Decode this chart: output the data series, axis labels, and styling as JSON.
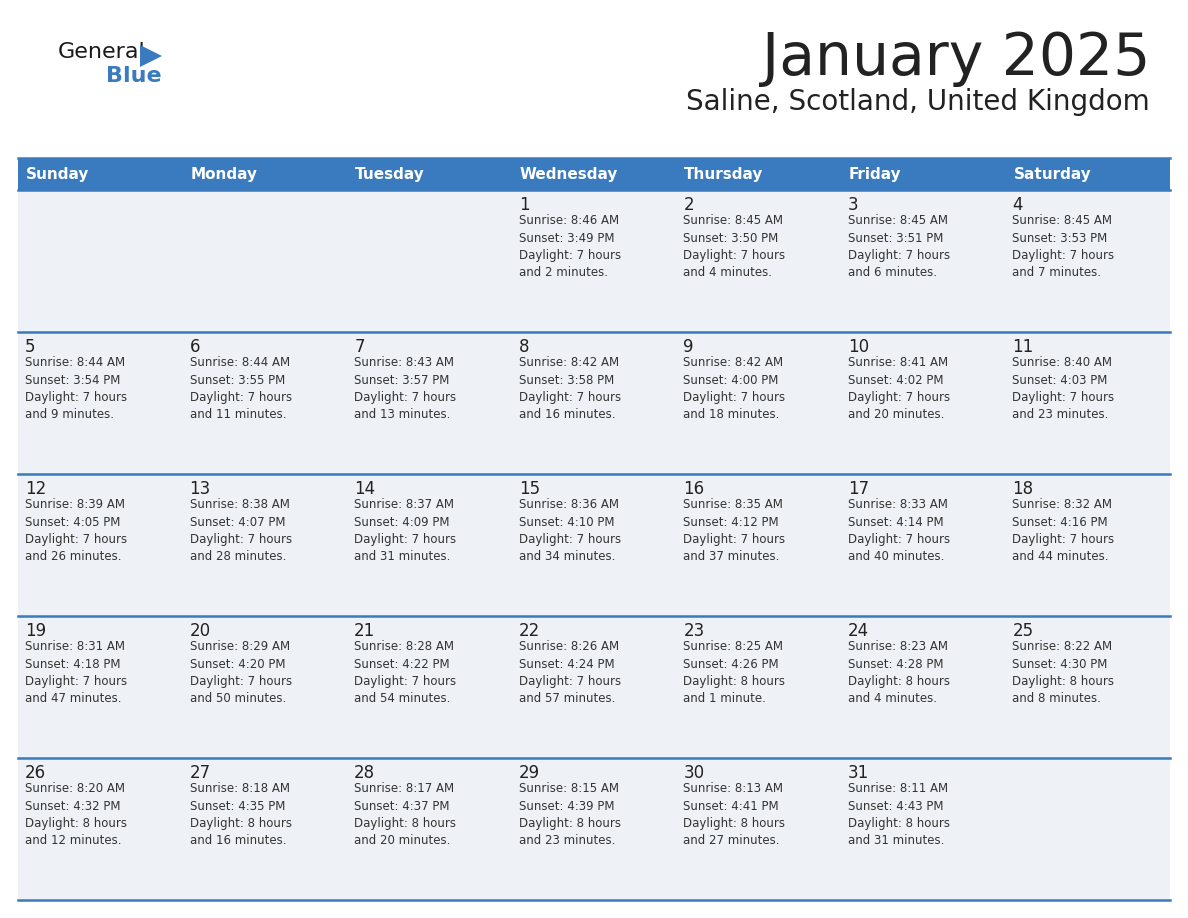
{
  "title": "January 2025",
  "subtitle": "Saline, Scotland, United Kingdom",
  "header_color": "#3a7abf",
  "header_text_color": "#ffffff",
  "cell_bg_light": "#eef2f7",
  "cell_bg_white": "#ffffff",
  "border_color": "#3a7abf",
  "text_color": "#222222",
  "info_color": "#333333",
  "days_of_week": [
    "Sunday",
    "Monday",
    "Tuesday",
    "Wednesday",
    "Thursday",
    "Friday",
    "Saturday"
  ],
  "calendar_data": [
    [
      {
        "day": "",
        "info": ""
      },
      {
        "day": "",
        "info": ""
      },
      {
        "day": "",
        "info": ""
      },
      {
        "day": "1",
        "info": "Sunrise: 8:46 AM\nSunset: 3:49 PM\nDaylight: 7 hours\nand 2 minutes."
      },
      {
        "day": "2",
        "info": "Sunrise: 8:45 AM\nSunset: 3:50 PM\nDaylight: 7 hours\nand 4 minutes."
      },
      {
        "day": "3",
        "info": "Sunrise: 8:45 AM\nSunset: 3:51 PM\nDaylight: 7 hours\nand 6 minutes."
      },
      {
        "day": "4",
        "info": "Sunrise: 8:45 AM\nSunset: 3:53 PM\nDaylight: 7 hours\nand 7 minutes."
      }
    ],
    [
      {
        "day": "5",
        "info": "Sunrise: 8:44 AM\nSunset: 3:54 PM\nDaylight: 7 hours\nand 9 minutes."
      },
      {
        "day": "6",
        "info": "Sunrise: 8:44 AM\nSunset: 3:55 PM\nDaylight: 7 hours\nand 11 minutes."
      },
      {
        "day": "7",
        "info": "Sunrise: 8:43 AM\nSunset: 3:57 PM\nDaylight: 7 hours\nand 13 minutes."
      },
      {
        "day": "8",
        "info": "Sunrise: 8:42 AM\nSunset: 3:58 PM\nDaylight: 7 hours\nand 16 minutes."
      },
      {
        "day": "9",
        "info": "Sunrise: 8:42 AM\nSunset: 4:00 PM\nDaylight: 7 hours\nand 18 minutes."
      },
      {
        "day": "10",
        "info": "Sunrise: 8:41 AM\nSunset: 4:02 PM\nDaylight: 7 hours\nand 20 minutes."
      },
      {
        "day": "11",
        "info": "Sunrise: 8:40 AM\nSunset: 4:03 PM\nDaylight: 7 hours\nand 23 minutes."
      }
    ],
    [
      {
        "day": "12",
        "info": "Sunrise: 8:39 AM\nSunset: 4:05 PM\nDaylight: 7 hours\nand 26 minutes."
      },
      {
        "day": "13",
        "info": "Sunrise: 8:38 AM\nSunset: 4:07 PM\nDaylight: 7 hours\nand 28 minutes."
      },
      {
        "day": "14",
        "info": "Sunrise: 8:37 AM\nSunset: 4:09 PM\nDaylight: 7 hours\nand 31 minutes."
      },
      {
        "day": "15",
        "info": "Sunrise: 8:36 AM\nSunset: 4:10 PM\nDaylight: 7 hours\nand 34 minutes."
      },
      {
        "day": "16",
        "info": "Sunrise: 8:35 AM\nSunset: 4:12 PM\nDaylight: 7 hours\nand 37 minutes."
      },
      {
        "day": "17",
        "info": "Sunrise: 8:33 AM\nSunset: 4:14 PM\nDaylight: 7 hours\nand 40 minutes."
      },
      {
        "day": "18",
        "info": "Sunrise: 8:32 AM\nSunset: 4:16 PM\nDaylight: 7 hours\nand 44 minutes."
      }
    ],
    [
      {
        "day": "19",
        "info": "Sunrise: 8:31 AM\nSunset: 4:18 PM\nDaylight: 7 hours\nand 47 minutes."
      },
      {
        "day": "20",
        "info": "Sunrise: 8:29 AM\nSunset: 4:20 PM\nDaylight: 7 hours\nand 50 minutes."
      },
      {
        "day": "21",
        "info": "Sunrise: 8:28 AM\nSunset: 4:22 PM\nDaylight: 7 hours\nand 54 minutes."
      },
      {
        "day": "22",
        "info": "Sunrise: 8:26 AM\nSunset: 4:24 PM\nDaylight: 7 hours\nand 57 minutes."
      },
      {
        "day": "23",
        "info": "Sunrise: 8:25 AM\nSunset: 4:26 PM\nDaylight: 8 hours\nand 1 minute."
      },
      {
        "day": "24",
        "info": "Sunrise: 8:23 AM\nSunset: 4:28 PM\nDaylight: 8 hours\nand 4 minutes."
      },
      {
        "day": "25",
        "info": "Sunrise: 8:22 AM\nSunset: 4:30 PM\nDaylight: 8 hours\nand 8 minutes."
      }
    ],
    [
      {
        "day": "26",
        "info": "Sunrise: 8:20 AM\nSunset: 4:32 PM\nDaylight: 8 hours\nand 12 minutes."
      },
      {
        "day": "27",
        "info": "Sunrise: 8:18 AM\nSunset: 4:35 PM\nDaylight: 8 hours\nand 16 minutes."
      },
      {
        "day": "28",
        "info": "Sunrise: 8:17 AM\nSunset: 4:37 PM\nDaylight: 8 hours\nand 20 minutes."
      },
      {
        "day": "29",
        "info": "Sunrise: 8:15 AM\nSunset: 4:39 PM\nDaylight: 8 hours\nand 23 minutes."
      },
      {
        "day": "30",
        "info": "Sunrise: 8:13 AM\nSunset: 4:41 PM\nDaylight: 8 hours\nand 27 minutes."
      },
      {
        "day": "31",
        "info": "Sunrise: 8:11 AM\nSunset: 4:43 PM\nDaylight: 8 hours\nand 31 minutes."
      },
      {
        "day": "",
        "info": ""
      }
    ]
  ],
  "logo_general_color": "#1a1a1a",
  "logo_blue_color": "#3a7abf",
  "logo_triangle_color": "#3a7abf",
  "title_fontsize": 42,
  "subtitle_fontsize": 20,
  "header_fontsize": 11,
  "day_num_fontsize": 12,
  "info_fontsize": 8.5
}
